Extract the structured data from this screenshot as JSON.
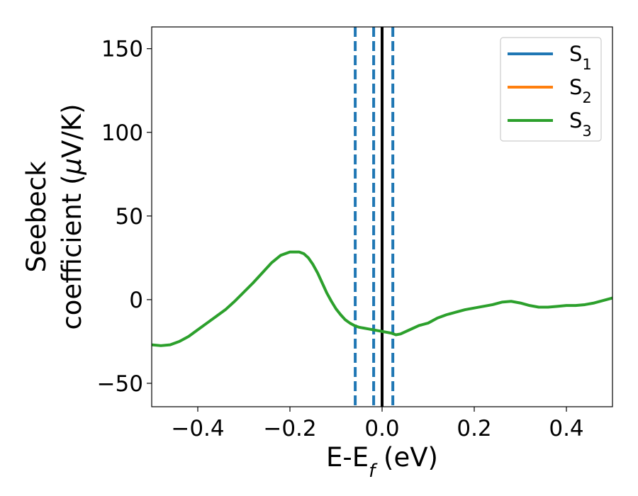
{
  "chart_data": {
    "type": "line",
    "xlabel": {
      "main": "E-E",
      "sub": "f",
      "suffix": " (eV)"
    },
    "ylabel": {
      "line1": "Seebeck",
      "line2_prefix": "coefficient  (",
      "line2_mu": "μ",
      "line2_suffix": "V/K)"
    },
    "xlim": [
      -0.5,
      0.5
    ],
    "ylim": [
      -64,
      163
    ],
    "xticks": [
      -0.4,
      -0.2,
      0.0,
      0.2,
      0.4
    ],
    "xtick_labels": [
      "−0.4",
      "−0.2",
      "0.0",
      "0.2",
      "0.4"
    ],
    "yticks": [
      -50,
      0,
      50,
      100,
      150
    ],
    "ytick_labels": [
      "−50",
      "0",
      "50",
      "100",
      "150"
    ],
    "legend_position": "top-right",
    "series": [
      {
        "name": "S",
        "sub": "1",
        "color": "#1f77b4"
      },
      {
        "name": "S",
        "sub": "2",
        "color": "#ff7f0e"
      },
      {
        "name": "S",
        "sub": "3",
        "color": "#2ca02c",
        "x": [
          -0.5,
          -0.48,
          -0.46,
          -0.44,
          -0.42,
          -0.4,
          -0.38,
          -0.36,
          -0.34,
          -0.32,
          -0.3,
          -0.28,
          -0.26,
          -0.24,
          -0.22,
          -0.2,
          -0.18,
          -0.17,
          -0.16,
          -0.15,
          -0.14,
          -0.13,
          -0.12,
          -0.11,
          -0.1,
          -0.09,
          -0.08,
          -0.07,
          -0.06,
          -0.05,
          -0.04,
          -0.03,
          -0.02,
          -0.01,
          0.0,
          0.01,
          0.02,
          0.03,
          0.04,
          0.06,
          0.08,
          0.1,
          0.12,
          0.14,
          0.16,
          0.18,
          0.2,
          0.22,
          0.24,
          0.26,
          0.28,
          0.3,
          0.32,
          0.34,
          0.36,
          0.38,
          0.4,
          0.42,
          0.44,
          0.46,
          0.48,
          0.5
        ],
        "y": [
          -27,
          -27.5,
          -27,
          -25,
          -22,
          -18,
          -14,
          -10,
          -6,
          -1,
          4.5,
          10,
          16,
          22,
          26.5,
          28.5,
          28.5,
          27.5,
          25,
          21,
          16,
          10,
          4,
          -1,
          -5.5,
          -9,
          -12,
          -14,
          -15.5,
          -16.5,
          -17,
          -17.5,
          -18,
          -18.5,
          -19,
          -19.5,
          -20,
          -21,
          -20.5,
          -18,
          -15.5,
          -14,
          -11,
          -9,
          -7.5,
          -6,
          -5,
          -4,
          -3,
          -1.5,
          -1,
          -2,
          -3.5,
          -4.5,
          -4.5,
          -4,
          -3.5,
          -3.5,
          -3,
          -2,
          -0.5,
          1
        ]
      }
    ],
    "vlines": [
      {
        "x": -0.0583,
        "style": "dashed",
        "color": "#1f77b4"
      },
      {
        "x": -0.0183,
        "style": "dashed",
        "color": "#1f77b4"
      },
      {
        "x": 0.0233,
        "style": "dashed",
        "color": "#1f77b4"
      },
      {
        "x": 0.0,
        "style": "solid",
        "color": "#000000"
      }
    ]
  }
}
